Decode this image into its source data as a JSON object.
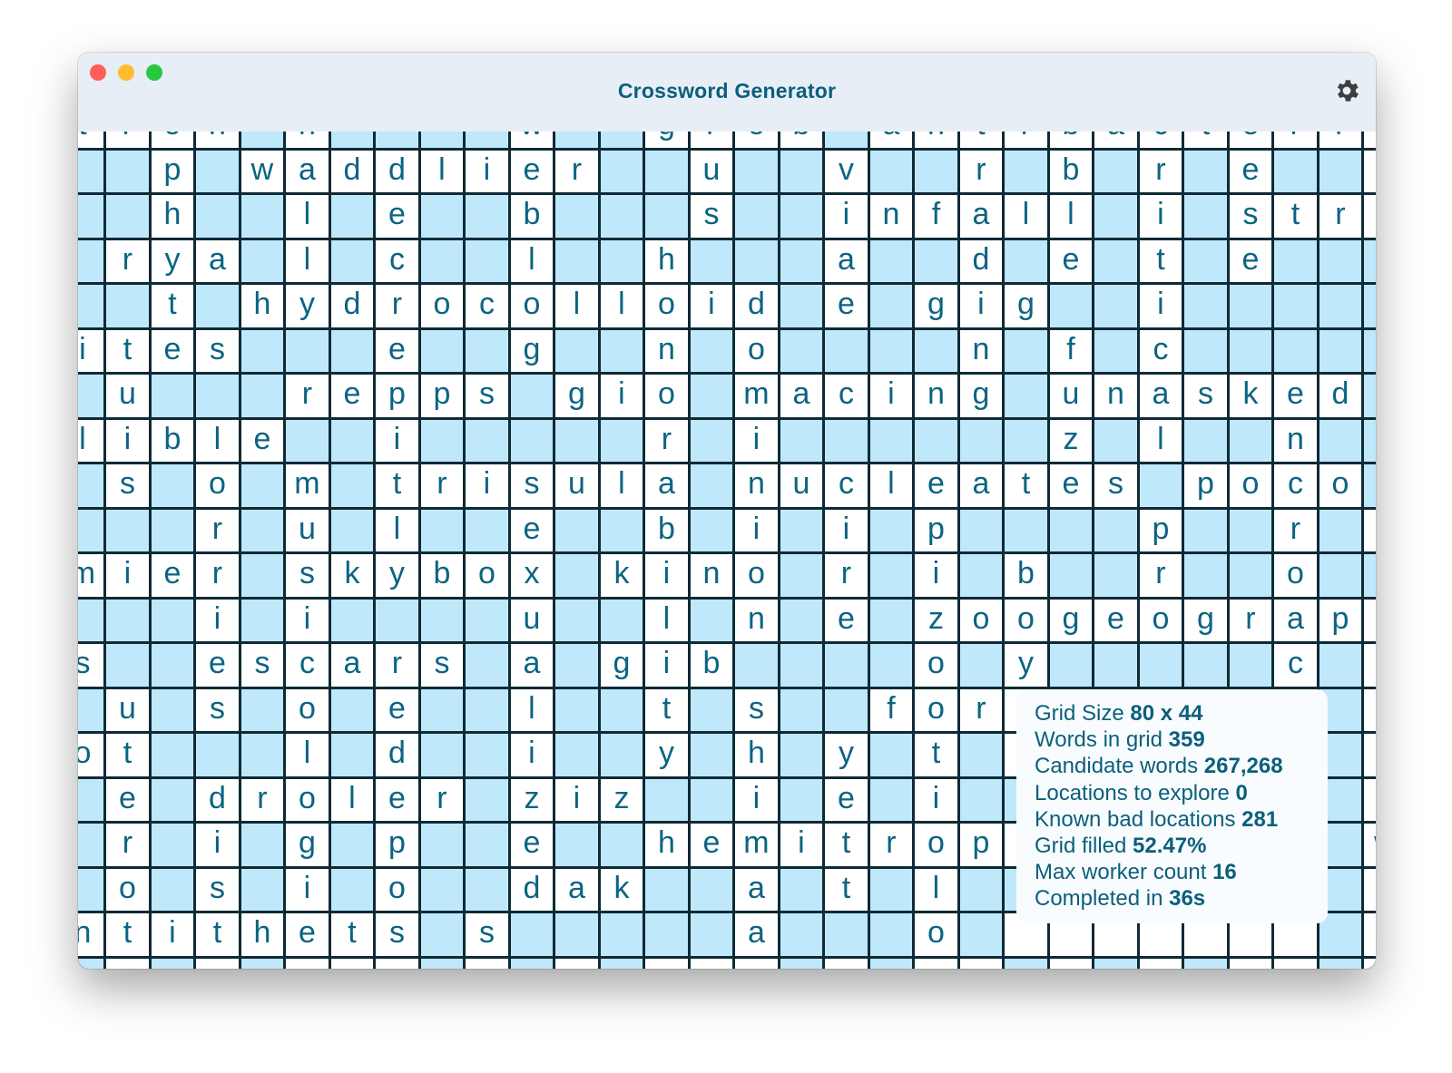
{
  "window": {
    "title": "Crossword Generator",
    "settings_icon": "gear-icon",
    "traffic_lights": {
      "close": "#fe5f57",
      "minimize": "#febc2e",
      "zoom": "#28c840"
    }
  },
  "colors": {
    "cell_blank": "#bfe8fb",
    "cell_letter": "#ffffff",
    "grid_line": "#0f2a36",
    "text": "#0b6482"
  },
  "grid": {
    "rows": [
      "tron.n....w..grob.antrbacterr_",
      "..p.waddlier..u..v..r.b.r.e.._",
      "..h..l.e..b...s..infall.i.str_",
      ".rya.l.c..l..h...a..d.e.t.e...",
      "..t.hydrocolloid.e.gig..i.....",
      "ites...e..g..n.o....n.f.c.....",
      ".u...repps.gio.macing.unasked.",
      "lible..i.....r.i......z.l..n..",
      ".s.o.m.trisula.nucleates.poco.",
      "...r.u.l..e..b.i.i.p....p..r._",
      "mier.skybox.kino.r.i.b..r..o..",
      "...i.i....u..l.n.e.zoogeograp_",
      "s..escars.a.gib....o.y.....c._",
      ".u.s.o.e..l..t.s..foramen.th._",
      "ot...l.d..i..y.h.y.t.r.f...e._",
      ".e.droler.ziz..i.e.i...obrts._",
      ".r.i.g.p..e..hemitropism.....w",
      ".o.s.i.o..dak..a.t.l...ac..y._",
      "ntithets.s.....a...o.lockage._",
      "._._.___._._.___._.__._._.__._"
    ]
  },
  "stats": [
    {
      "label": "Grid Size",
      "value": "80 x 44"
    },
    {
      "label": "Words in grid",
      "value": "359"
    },
    {
      "label": "Candidate words",
      "value": "267,268"
    },
    {
      "label": "Locations to explore",
      "value": "0"
    },
    {
      "label": "Known bad locations",
      "value": "281"
    },
    {
      "label": "Grid filled",
      "value": "52.47%"
    },
    {
      "label": "Max worker count",
      "value": "16"
    },
    {
      "label": "Completed in",
      "value": "36s"
    }
  ]
}
